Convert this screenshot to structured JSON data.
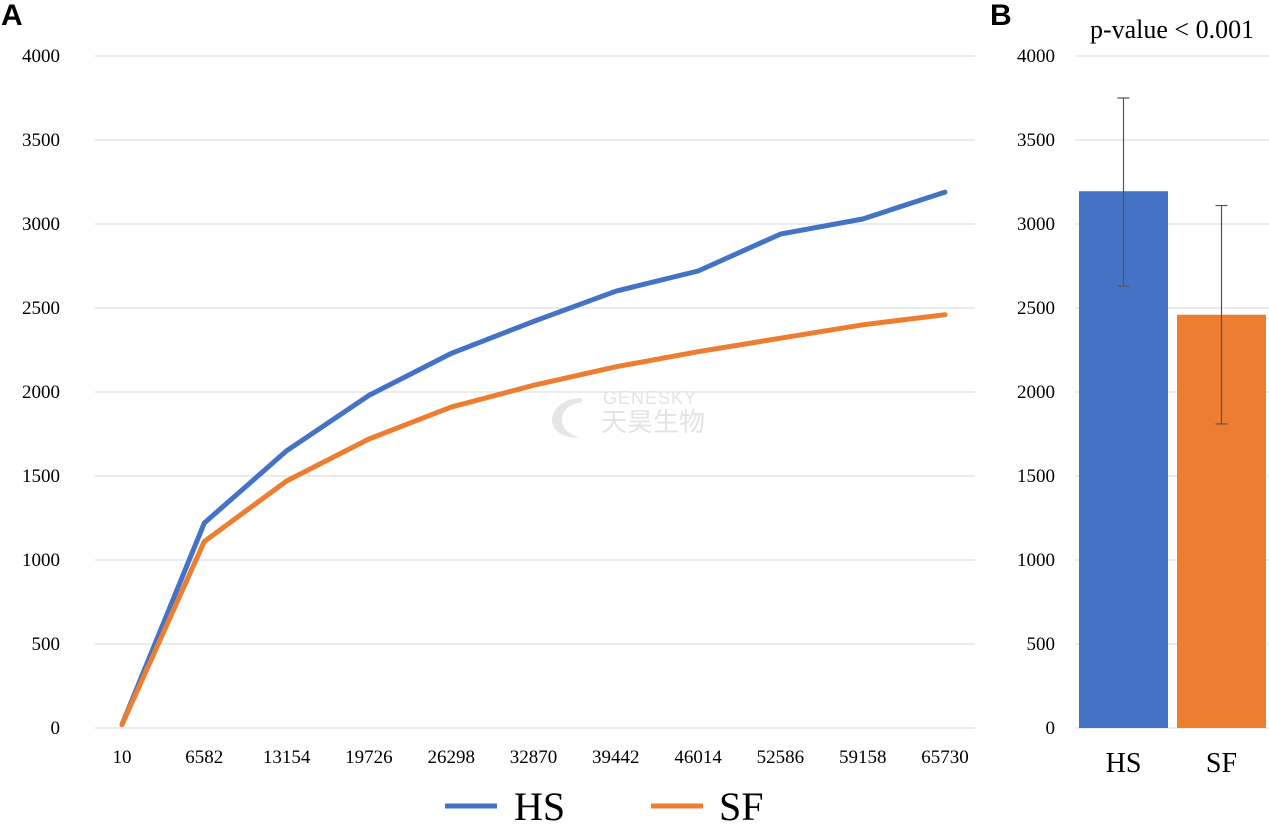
{
  "chart_data": [
    {
      "panel": "A",
      "type": "line",
      "x": [
        "10",
        "6582",
        "13154",
        "19726",
        "26298",
        "32870",
        "39442",
        "46014",
        "52586",
        "59158",
        "65730"
      ],
      "series": [
        {
          "name": "HS",
          "color": "#4472c4",
          "values": [
            20,
            1220,
            1650,
            1980,
            2230,
            2420,
            2600,
            2720,
            2940,
            3030,
            3190
          ]
        },
        {
          "name": "SF",
          "color": "#ed7d31",
          "values": [
            20,
            1110,
            1470,
            1720,
            1910,
            2040,
            2150,
            2240,
            2320,
            2400,
            2460
          ]
        }
      ],
      "yticks": [
        "0",
        "500",
        "1000",
        "1500",
        "2000",
        "2500",
        "3000",
        "3500",
        "4000"
      ],
      "ylim": [
        0,
        4000
      ],
      "grid": true,
      "legend": "bottom"
    },
    {
      "panel": "B",
      "type": "bar",
      "title": "p-value < 0.001",
      "categories": [
        "HS",
        "SF"
      ],
      "values": [
        3195,
        2460
      ],
      "error_low": [
        2630,
        1810
      ],
      "error_high": [
        3750,
        3110
      ],
      "colors": [
        "#4472c4",
        "#ed7d31"
      ],
      "yticks": [
        "0",
        "500",
        "1000",
        "1500",
        "2000",
        "2500",
        "3000",
        "3500",
        "4000"
      ],
      "ylim": [
        0,
        4000
      ],
      "grid": true
    }
  ],
  "watermark": {
    "line1": "GENESKY",
    "line2": "天昊生物"
  }
}
